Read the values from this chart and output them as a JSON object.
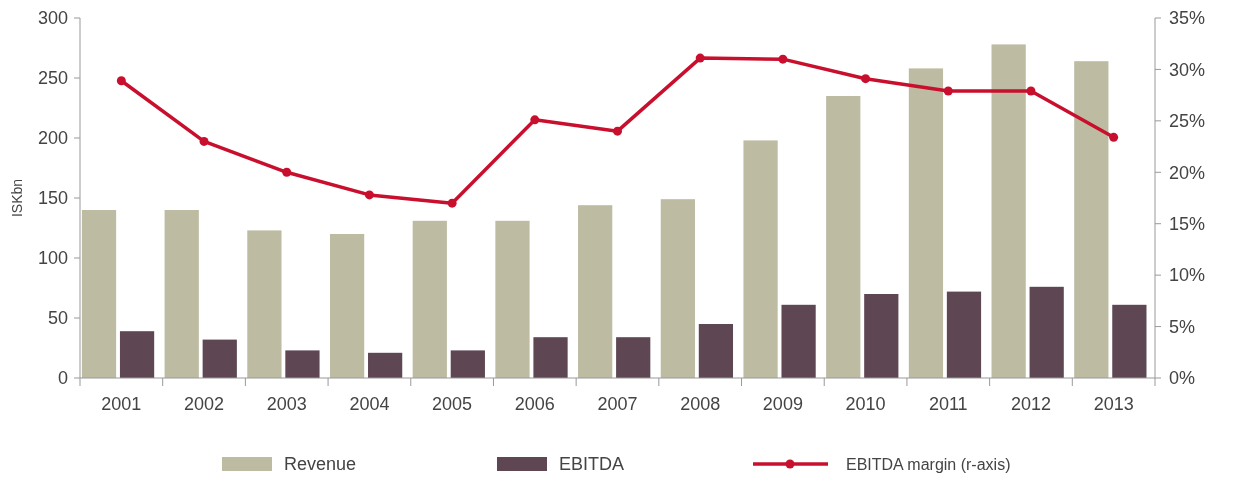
{
  "chart_data": {
    "type": "bar",
    "ylabel": "ISKbn",
    "categories": [
      "2001",
      "2002",
      "2003",
      "2004",
      "2005",
      "2006",
      "2007",
      "2008",
      "2009",
      "2010",
      "2011",
      "2012",
      "2013"
    ],
    "series": [
      {
        "name": "Revenue",
        "color": "#bdbba2",
        "values": [
          140,
          140,
          123,
          120,
          131,
          131,
          144,
          149,
          198,
          235,
          258,
          278,
          264
        ]
      },
      {
        "name": "EBITDA",
        "color": "#5e4753",
        "values": [
          39,
          32,
          23,
          21,
          23,
          34,
          34,
          45,
          61,
          70,
          72,
          76,
          61
        ]
      },
      {
        "name": "EBITDA margin (r-axis)",
        "type": "line",
        "axis": "y2",
        "color": "#c8102e",
        "marker": "circle",
        "values": [
          28.9,
          23.0,
          20.0,
          17.8,
          17.0,
          25.1,
          24.0,
          31.1,
          31.0,
          29.1,
          27.9,
          27.9,
          23.4
        ]
      }
    ],
    "ylim": [
      0,
      300
    ],
    "yticks": [
      0,
      50,
      100,
      150,
      200,
      250,
      300
    ],
    "y2lim": [
      0,
      35
    ],
    "y2ticks": [
      {
        "value": 0,
        "label": "0%"
      },
      {
        "value": 5,
        "label": "5%"
      },
      {
        "value": 10,
        "label": "10%"
      },
      {
        "value": 15,
        "label": "15%"
      },
      {
        "value": 20,
        "label": "20%"
      },
      {
        "value": 25,
        "label": "25%"
      },
      {
        "value": 30,
        "label": "30%"
      },
      {
        "value": 35,
        "label": "35%"
      }
    ],
    "grid": false,
    "legend": "bottom"
  }
}
